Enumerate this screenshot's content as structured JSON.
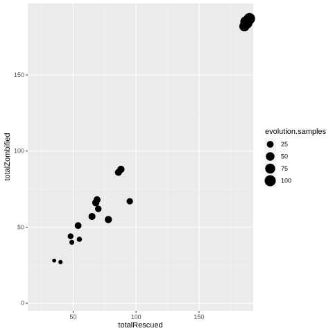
{
  "chart_data": {
    "type": "scatter",
    "xlabel": "totalRescued",
    "ylabel": "totalZombified",
    "xlim": [
      14,
      193
    ],
    "ylim": [
      -5,
      197
    ],
    "x_ticks": [
      50,
      100,
      150
    ],
    "y_ticks": [
      0,
      50,
      100,
      150
    ],
    "x_tick_labels": [
      "50",
      "100",
      "150"
    ],
    "y_tick_labels": [
      "0",
      "50",
      "100",
      "150"
    ],
    "grid": true,
    "legend": {
      "title": "evolution.samples",
      "placement": "right",
      "entries": [
        {
          "label": "25",
          "value": 25
        },
        {
          "label": "50",
          "value": 50
        },
        {
          "label": "75",
          "value": 75
        },
        {
          "label": "100",
          "value": 100
        }
      ]
    },
    "points": [
      {
        "x": 35,
        "y": 28,
        "size": 3
      },
      {
        "x": 40,
        "y": 27,
        "size": 4
      },
      {
        "x": 48,
        "y": 44,
        "size": 15
      },
      {
        "x": 49,
        "y": 40,
        "size": 8
      },
      {
        "x": 54,
        "y": 51,
        "size": 25
      },
      {
        "x": 55,
        "y": 42,
        "size": 10
      },
      {
        "x": 65,
        "y": 57,
        "size": 28
      },
      {
        "x": 68,
        "y": 66,
        "size": 30
      },
      {
        "x": 69,
        "y": 68,
        "size": 28
      },
      {
        "x": 70,
        "y": 62,
        "size": 22
      },
      {
        "x": 78,
        "y": 55,
        "size": 30
      },
      {
        "x": 86,
        "y": 86,
        "size": 28
      },
      {
        "x": 88,
        "y": 88,
        "size": 30
      },
      {
        "x": 95,
        "y": 67,
        "size": 20
      },
      {
        "x": 186,
        "y": 182,
        "size": 80
      },
      {
        "x": 187,
        "y": 185,
        "size": 90
      },
      {
        "x": 188,
        "y": 184,
        "size": 95
      },
      {
        "x": 189,
        "y": 186,
        "size": 100
      },
      {
        "x": 190,
        "y": 187,
        "size": 105
      }
    ]
  }
}
